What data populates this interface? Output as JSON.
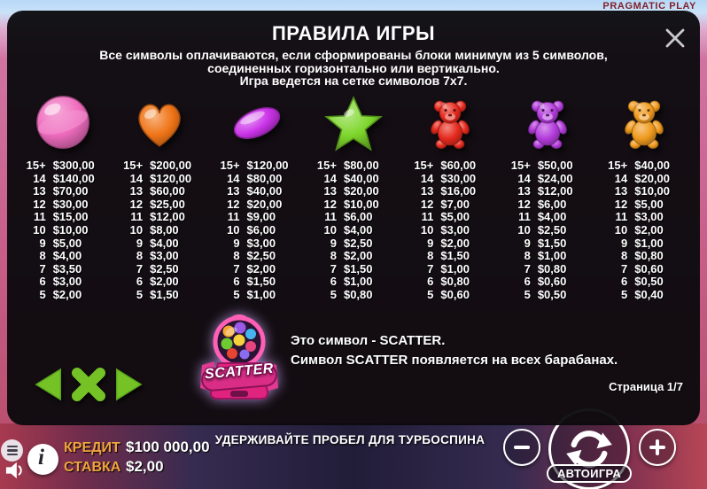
{
  "branding": {
    "logo": "PRAGMATIC PLAY"
  },
  "panel": {
    "title": "ПРАВИЛА ИГРЫ",
    "description_lines": [
      "Все символы оплачиваются, если сформированы блоки минимум из 5 символов,",
      "соединенных горизонтально или вертикально.",
      "Игра ведется на сетке символов 7х7."
    ],
    "page_indicator": "Страница 1/7"
  },
  "paytable": {
    "counts": [
      "15+",
      "14",
      "13",
      "12",
      "11",
      "10",
      "9",
      "8",
      "7",
      "6",
      "5"
    ],
    "symbols": [
      {
        "name": "lollipop",
        "color": "#ef6cbe",
        "values": [
          "$300,00",
          "$140,00",
          "$70,00",
          "$30,00",
          "$15,00",
          "$10,00",
          "$5,00",
          "$4,00",
          "$3,50",
          "$3,00",
          "$2,00"
        ]
      },
      {
        "name": "heart",
        "color": "#f07417",
        "values": [
          "$200,00",
          "$120,00",
          "$60,00",
          "$25,00",
          "$12,00",
          "$8,00",
          "$4,00",
          "$3,00",
          "$2,50",
          "$2,00",
          "$1,50"
        ]
      },
      {
        "name": "jelly-bean",
        "color": "#cb33e8",
        "values": [
          "$120,00",
          "$80,00",
          "$40,00",
          "$20,00",
          "$9,00",
          "$6,00",
          "$3,00",
          "$2,50",
          "$2,00",
          "$1,50",
          "$1,00"
        ]
      },
      {
        "name": "star",
        "color": "#7dd62b",
        "values": [
          "$80,00",
          "$40,00",
          "$20,00",
          "$10,00",
          "$6,00",
          "$4,00",
          "$2,50",
          "$2,00",
          "$1,50",
          "$1,00",
          "$0,80"
        ]
      },
      {
        "name": "bear-red",
        "color": "#e62a1e",
        "values": [
          "$60,00",
          "$30,00",
          "$16,00",
          "$7,00",
          "$5,00",
          "$3,00",
          "$2,00",
          "$1,50",
          "$1,00",
          "$0,80",
          "$0,60"
        ]
      },
      {
        "name": "bear-purple",
        "color": "#b43cdc",
        "values": [
          "$50,00",
          "$24,00",
          "$12,00",
          "$6,00",
          "$4,00",
          "$2,50",
          "$1,50",
          "$1,00",
          "$0,80",
          "$0,60",
          "$0,50"
        ]
      },
      {
        "name": "bear-orange",
        "color": "#f09a1e",
        "values": [
          "$40,00",
          "$20,00",
          "$10,00",
          "$5,00",
          "$3,00",
          "$2,00",
          "$1,00",
          "$0,80",
          "$0,60",
          "$0,50",
          "$0,40"
        ]
      }
    ]
  },
  "scatter": {
    "badge": "SCATTER",
    "line1": "Это символ - SCATTER.",
    "line2": "Символ SCATTER появляется на всех барабанах."
  },
  "bottom_bar": {
    "credit_label": "КРЕДИТ",
    "credit_value": "$100 000,00",
    "bet_label": "СТАВКА",
    "bet_value": "$2,00",
    "turbo_hint": "УДЕРЖИВАЙТЕ ПРОБЕЛ ДЛЯ ТУРБОСПИНА",
    "autoplay_label": "АВТОИГРА"
  },
  "icons": {
    "close": "x-cross",
    "prev": "left-triangle",
    "nav_close": "x-cross",
    "next": "right-triangle",
    "menu": "hamburger",
    "sound": "speaker",
    "info": "i",
    "minus": "minus",
    "spin": "cycle-arrows",
    "plus": "plus"
  },
  "colors": {
    "accent_green": "#74c226",
    "gold_label": "#f2a43c",
    "scatter_pink": "#ef399a",
    "logo_red": "#7c1f2a",
    "panel_bg": "#0a090d"
  }
}
